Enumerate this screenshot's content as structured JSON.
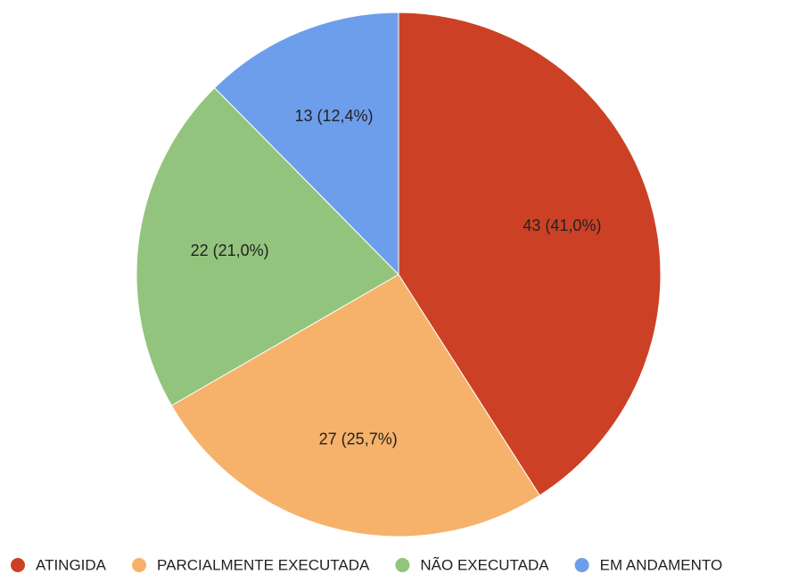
{
  "chart_data": {
    "type": "pie",
    "categories": [
      "ATINGIDA",
      "PARCIALMENTE EXECUTADA",
      "NÃO EXECUTADA",
      "EM ANDAMENTO"
    ],
    "values": [
      43,
      27,
      22,
      13
    ],
    "value_labels": [
      "43 (41,0%)",
      "27 (25,7%)",
      "22 (21,0%)",
      "13 (12,4%)"
    ],
    "colors": [
      "#cc4125",
      "#f6b26b",
      "#93c47d",
      "#6d9eeb"
    ],
    "legend": "bottom"
  }
}
